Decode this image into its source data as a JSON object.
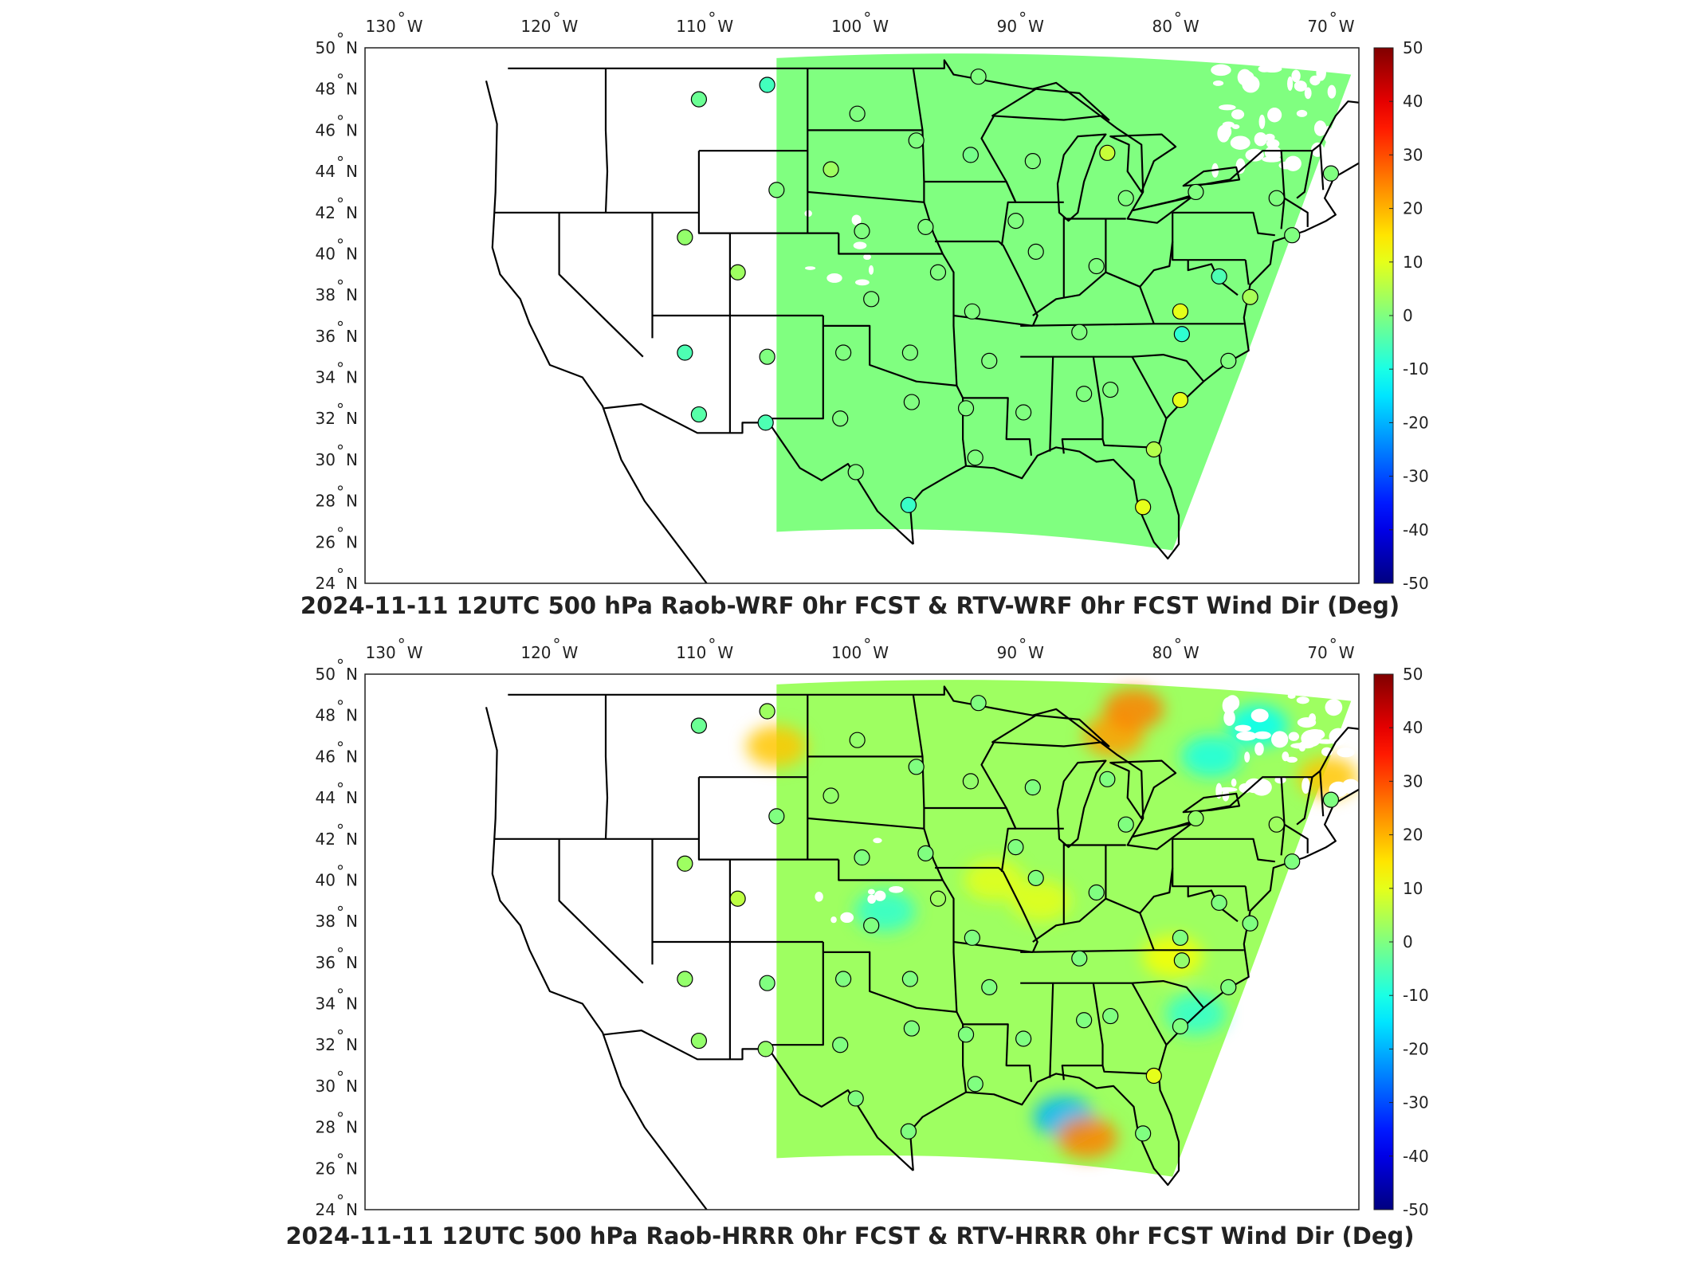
{
  "chart_data": [
    {
      "type": "heatmap",
      "title": "2024-11-11 12UTC 500 hPa Raob-WRF 0hr FCST & RTV-WRF 0hr FCST Wind Dir (Deg)",
      "xlabel": "",
      "ylabel": "",
      "x_ticks": [
        {
          "value": -130,
          "label": "130 W"
        },
        {
          "value": -120,
          "label": "120 W"
        },
        {
          "value": -110,
          "label": "110 W"
        },
        {
          "value": -100,
          "label": "100 W"
        },
        {
          "value": -90,
          "label": "90 W"
        },
        {
          "value": -80,
          "label": "80 W"
        },
        {
          "value": -70,
          "label": "70 W"
        }
      ],
      "y_ticks": [
        {
          "value": 24,
          "label": "24 N"
        },
        {
          "value": 26,
          "label": "26 N"
        },
        {
          "value": 28,
          "label": "28 N"
        },
        {
          "value": 30,
          "label": "30 N"
        },
        {
          "value": 32,
          "label": "32 N"
        },
        {
          "value": 34,
          "label": "34 N"
        },
        {
          "value": 36,
          "label": "36 N"
        },
        {
          "value": 38,
          "label": "38 N"
        },
        {
          "value": 40,
          "label": "40 N"
        },
        {
          "value": 42,
          "label": "42 N"
        },
        {
          "value": 44,
          "label": "44 N"
        },
        {
          "value": 46,
          "label": "46 N"
        },
        {
          "value": 48,
          "label": "48 N"
        },
        {
          "value": 50,
          "label": "50 N"
        }
      ],
      "colorbar": {
        "min": -50,
        "max": 50,
        "ticks": [
          50,
          40,
          30,
          20,
          10,
          0,
          -10,
          -20,
          -30,
          -40,
          -50
        ],
        "colormap": "jet"
      },
      "field_mean_value": 0,
      "field_lon_range": [
        -106,
        -69
      ],
      "raob_points": [
        {
          "lon": -111.0,
          "lat": 47.5,
          "value": -2
        },
        {
          "lon": -106.6,
          "lat": 48.2,
          "value": -6
        },
        {
          "lon": -100.8,
          "lat": 46.8,
          "value": 0
        },
        {
          "lon": -97.0,
          "lat": 45.5,
          "value": 0
        },
        {
          "lon": -93.5,
          "lat": 44.8,
          "value": -1
        },
        {
          "lon": -93.0,
          "lat": 48.6,
          "value": 0
        },
        {
          "lon": -89.5,
          "lat": 44.5,
          "value": 0
        },
        {
          "lon": -84.7,
          "lat": 44.9,
          "value": 7
        },
        {
          "lon": -83.5,
          "lat": 42.7,
          "value": 0
        },
        {
          "lon": -79.0,
          "lat": 43.0,
          "value": 0
        },
        {
          "lon": -73.8,
          "lat": 42.7,
          "value": 0
        },
        {
          "lon": -70.3,
          "lat": 43.9,
          "value": 0
        },
        {
          "lon": -72.8,
          "lat": 40.9,
          "value": 0
        },
        {
          "lon": -102.5,
          "lat": 44.1,
          "value": 3
        },
        {
          "lon": -106.0,
          "lat": 43.1,
          "value": 0
        },
        {
          "lon": -100.5,
          "lat": 41.1,
          "value": 0
        },
        {
          "lon": -96.4,
          "lat": 41.3,
          "value": 0
        },
        {
          "lon": -90.6,
          "lat": 41.6,
          "value": 0
        },
        {
          "lon": -89.3,
          "lat": 40.1,
          "value": 0
        },
        {
          "lon": -85.4,
          "lat": 39.4,
          "value": 0
        },
        {
          "lon": -111.9,
          "lat": 40.8,
          "value": 2
        },
        {
          "lon": -108.5,
          "lat": 39.1,
          "value": 3
        },
        {
          "lon": -99.9,
          "lat": 37.8,
          "value": 0
        },
        {
          "lon": -95.6,
          "lat": 39.1,
          "value": 0
        },
        {
          "lon": -93.4,
          "lat": 37.2,
          "value": 0
        },
        {
          "lon": -80.0,
          "lat": 37.2,
          "value": 10
        },
        {
          "lon": -77.5,
          "lat": 38.9,
          "value": -5
        },
        {
          "lon": -75.5,
          "lat": 37.9,
          "value": 4
        },
        {
          "lon": -86.5,
          "lat": 36.2,
          "value": 0
        },
        {
          "lon": -79.9,
          "lat": 36.1,
          "value": -8
        },
        {
          "lon": -76.9,
          "lat": 34.8,
          "value": 0
        },
        {
          "lon": -111.9,
          "lat": 35.2,
          "value": -5
        },
        {
          "lon": -106.6,
          "lat": 35.0,
          "value": 0
        },
        {
          "lon": -101.7,
          "lat": 35.2,
          "value": 0
        },
        {
          "lon": -97.4,
          "lat": 35.2,
          "value": 0
        },
        {
          "lon": -92.3,
          "lat": 34.8,
          "value": 0
        },
        {
          "lon": -111.0,
          "lat": 32.2,
          "value": -4
        },
        {
          "lon": -106.7,
          "lat": 31.8,
          "value": -5
        },
        {
          "lon": -101.9,
          "lat": 32.0,
          "value": 0
        },
        {
          "lon": -97.3,
          "lat": 32.8,
          "value": 0
        },
        {
          "lon": -93.8,
          "lat": 32.5,
          "value": 0
        },
        {
          "lon": -90.1,
          "lat": 32.3,
          "value": 0
        },
        {
          "lon": -86.2,
          "lat": 33.2,
          "value": 0
        },
        {
          "lon": -84.5,
          "lat": 33.4,
          "value": 0
        },
        {
          "lon": -80.0,
          "lat": 32.9,
          "value": 10
        },
        {
          "lon": -81.7,
          "lat": 30.5,
          "value": 5
        },
        {
          "lon": -93.2,
          "lat": 30.1,
          "value": 0
        },
        {
          "lon": -100.9,
          "lat": 29.4,
          "value": 0
        },
        {
          "lon": -97.5,
          "lat": 27.8,
          "value": -7
        },
        {
          "lon": -82.4,
          "lat": 27.7,
          "value": 10
        }
      ]
    },
    {
      "type": "heatmap",
      "title": "2024-11-11 12UTC 500 hPa Raob-HRRR 0hr FCST & RTV-HRRR 0hr FCST Wind Dir (Deg)",
      "xlabel": "",
      "ylabel": "",
      "x_ticks": [
        {
          "value": -130,
          "label": "130 W"
        },
        {
          "value": -120,
          "label": "120 W"
        },
        {
          "value": -110,
          "label": "110 W"
        },
        {
          "value": -100,
          "label": "100 W"
        },
        {
          "value": -90,
          "label": "90 W"
        },
        {
          "value": -80,
          "label": "80 W"
        },
        {
          "value": -70,
          "label": "70 W"
        }
      ],
      "y_ticks": [
        {
          "value": 24,
          "label": "24 N"
        },
        {
          "value": 26,
          "label": "26 N"
        },
        {
          "value": 28,
          "label": "28 N"
        },
        {
          "value": 30,
          "label": "30 N"
        },
        {
          "value": 32,
          "label": "32 N"
        },
        {
          "value": 34,
          "label": "34 N"
        },
        {
          "value": 36,
          "label": "36 N"
        },
        {
          "value": 38,
          "label": "38 N"
        },
        {
          "value": 40,
          "label": "40 N"
        },
        {
          "value": 42,
          "label": "42 N"
        },
        {
          "value": 44,
          "label": "44 N"
        },
        {
          "value": 46,
          "label": "46 N"
        },
        {
          "value": 48,
          "label": "48 N"
        },
        {
          "value": 50,
          "label": "50 N"
        }
      ],
      "colorbar": {
        "min": -50,
        "max": 50,
        "ticks": [
          50,
          40,
          30,
          20,
          10,
          0,
          -10,
          -20,
          -30,
          -40,
          -50
        ],
        "colormap": "jet"
      },
      "field_mean_value": 3,
      "field_lon_range": [
        -106,
        -69
      ],
      "field_anomalies": [
        {
          "lon": -106.0,
          "lat": 46.5,
          "value": 18
        },
        {
          "lon": -84.3,
          "lat": 47.0,
          "value": 22
        },
        {
          "lon": -83.0,
          "lat": 48.3,
          "value": 25
        },
        {
          "lon": -70.5,
          "lat": 45.0,
          "value": 18
        },
        {
          "lon": -89.0,
          "lat": 39.0,
          "value": 10
        },
        {
          "lon": -92.0,
          "lat": 40.0,
          "value": 10
        },
        {
          "lon": -87.5,
          "lat": 28.5,
          "value": -20
        },
        {
          "lon": -86.0,
          "lat": 27.5,
          "value": 25
        },
        {
          "lon": -78.0,
          "lat": 46.0,
          "value": -10
        },
        {
          "lon": -75.0,
          "lat": 47.5,
          "value": -12
        },
        {
          "lon": -99.0,
          "lat": 38.5,
          "value": -8
        },
        {
          "lon": -80.5,
          "lat": 36.3,
          "value": 12
        },
        {
          "lon": -79.0,
          "lat": 33.5,
          "value": -8
        }
      ],
      "raob_points": [
        {
          "lon": -111.0,
          "lat": 47.5,
          "value": -2
        },
        {
          "lon": -106.6,
          "lat": 48.2,
          "value": 3
        },
        {
          "lon": -100.8,
          "lat": 46.8,
          "value": 2
        },
        {
          "lon": -97.0,
          "lat": 45.5,
          "value": 0
        },
        {
          "lon": -93.5,
          "lat": 44.8,
          "value": 2
        },
        {
          "lon": -93.0,
          "lat": 48.6,
          "value": 0
        },
        {
          "lon": -89.5,
          "lat": 44.5,
          "value": 0
        },
        {
          "lon": -84.7,
          "lat": 44.9,
          "value": 0
        },
        {
          "lon": -83.5,
          "lat": 42.7,
          "value": 0
        },
        {
          "lon": -79.0,
          "lat": 43.0,
          "value": 2
        },
        {
          "lon": -73.8,
          "lat": 42.7,
          "value": 3
        },
        {
          "lon": -70.3,
          "lat": 43.9,
          "value": 0
        },
        {
          "lon": -72.8,
          "lat": 40.9,
          "value": 0
        },
        {
          "lon": -102.5,
          "lat": 44.1,
          "value": 2
        },
        {
          "lon": -106.0,
          "lat": 43.1,
          "value": 0
        },
        {
          "lon": -100.5,
          "lat": 41.1,
          "value": 0
        },
        {
          "lon": -96.4,
          "lat": 41.3,
          "value": 0
        },
        {
          "lon": -90.6,
          "lat": 41.6,
          "value": 0
        },
        {
          "lon": -89.3,
          "lat": 40.1,
          "value": 0
        },
        {
          "lon": -85.4,
          "lat": 39.4,
          "value": 0
        },
        {
          "lon": -111.9,
          "lat": 40.8,
          "value": 3
        },
        {
          "lon": -108.5,
          "lat": 39.1,
          "value": 6
        },
        {
          "lon": -99.9,
          "lat": 37.8,
          "value": 0
        },
        {
          "lon": -95.6,
          "lat": 39.1,
          "value": 3
        },
        {
          "lon": -93.4,
          "lat": 37.2,
          "value": 0
        },
        {
          "lon": -80.0,
          "lat": 37.2,
          "value": 0
        },
        {
          "lon": -77.5,
          "lat": 38.9,
          "value": 0
        },
        {
          "lon": -75.5,
          "lat": 37.9,
          "value": 0
        },
        {
          "lon": -86.5,
          "lat": 36.2,
          "value": 0
        },
        {
          "lon": -79.9,
          "lat": 36.1,
          "value": 2
        },
        {
          "lon": -76.9,
          "lat": 34.8,
          "value": 0
        },
        {
          "lon": -111.9,
          "lat": 35.2,
          "value": 2
        },
        {
          "lon": -106.6,
          "lat": 35.0,
          "value": 0
        },
        {
          "lon": -101.7,
          "lat": 35.2,
          "value": 0
        },
        {
          "lon": -97.4,
          "lat": 35.2,
          "value": 0
        },
        {
          "lon": -92.3,
          "lat": 34.8,
          "value": 0
        },
        {
          "lon": -111.0,
          "lat": 32.2,
          "value": 2
        },
        {
          "lon": -106.7,
          "lat": 31.8,
          "value": 2
        },
        {
          "lon": -101.9,
          "lat": 32.0,
          "value": 0
        },
        {
          "lon": -97.3,
          "lat": 32.8,
          "value": 0
        },
        {
          "lon": -93.8,
          "lat": 32.5,
          "value": 0
        },
        {
          "lon": -90.1,
          "lat": 32.3,
          "value": 0
        },
        {
          "lon": -86.2,
          "lat": 33.2,
          "value": 0
        },
        {
          "lon": -84.5,
          "lat": 33.4,
          "value": 0
        },
        {
          "lon": -80.0,
          "lat": 32.9,
          "value": 0
        },
        {
          "lon": -81.7,
          "lat": 30.5,
          "value": 10
        },
        {
          "lon": -93.2,
          "lat": 30.1,
          "value": 0
        },
        {
          "lon": -100.9,
          "lat": 29.4,
          "value": 0
        },
        {
          "lon": -97.5,
          "lat": 27.8,
          "value": 0
        },
        {
          "lon": -82.4,
          "lat": 27.7,
          "value": 0
        }
      ]
    }
  ]
}
